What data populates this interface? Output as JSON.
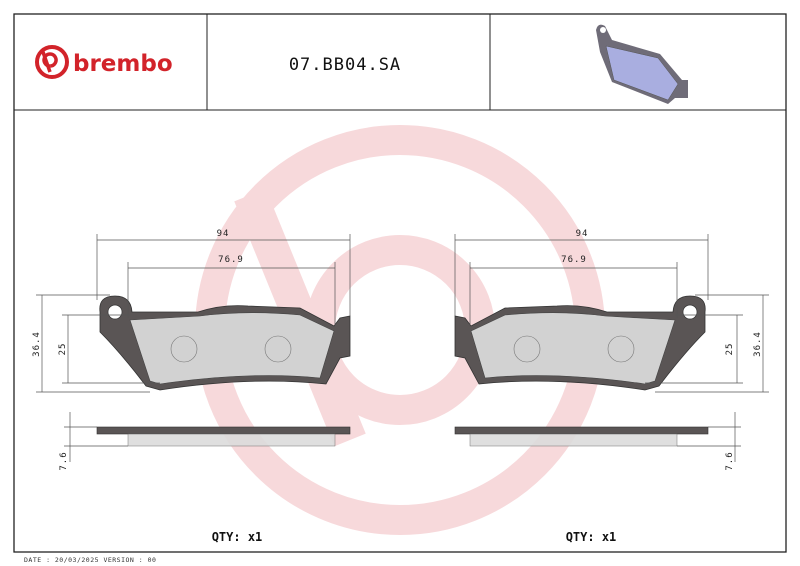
{
  "header": {
    "brand": "brembo",
    "part_number": "07.BB04.SA",
    "thumbnail_icon": "brake-pad-thumbnail-icon"
  },
  "colors": {
    "brand_red": "#d2232a",
    "watermark": "#f7d9db",
    "backplate": "#555555",
    "friction": "#dcdcdc",
    "thumbnail": "#a9aee0"
  },
  "left_pad": {
    "width_overall": "94",
    "width_friction": "76.9",
    "height_overall": "36.4",
    "height_friction": "25",
    "thickness": "7.6",
    "qty": "QTY: x1"
  },
  "right_pad": {
    "width_overall": "94",
    "width_friction": "76.9",
    "height_overall": "36.4",
    "height_friction": "25",
    "thickness": "7.6",
    "qty": "QTY: x1"
  },
  "footer": {
    "date_version": "DATE : 20/03/2025 VERSION : 00"
  }
}
